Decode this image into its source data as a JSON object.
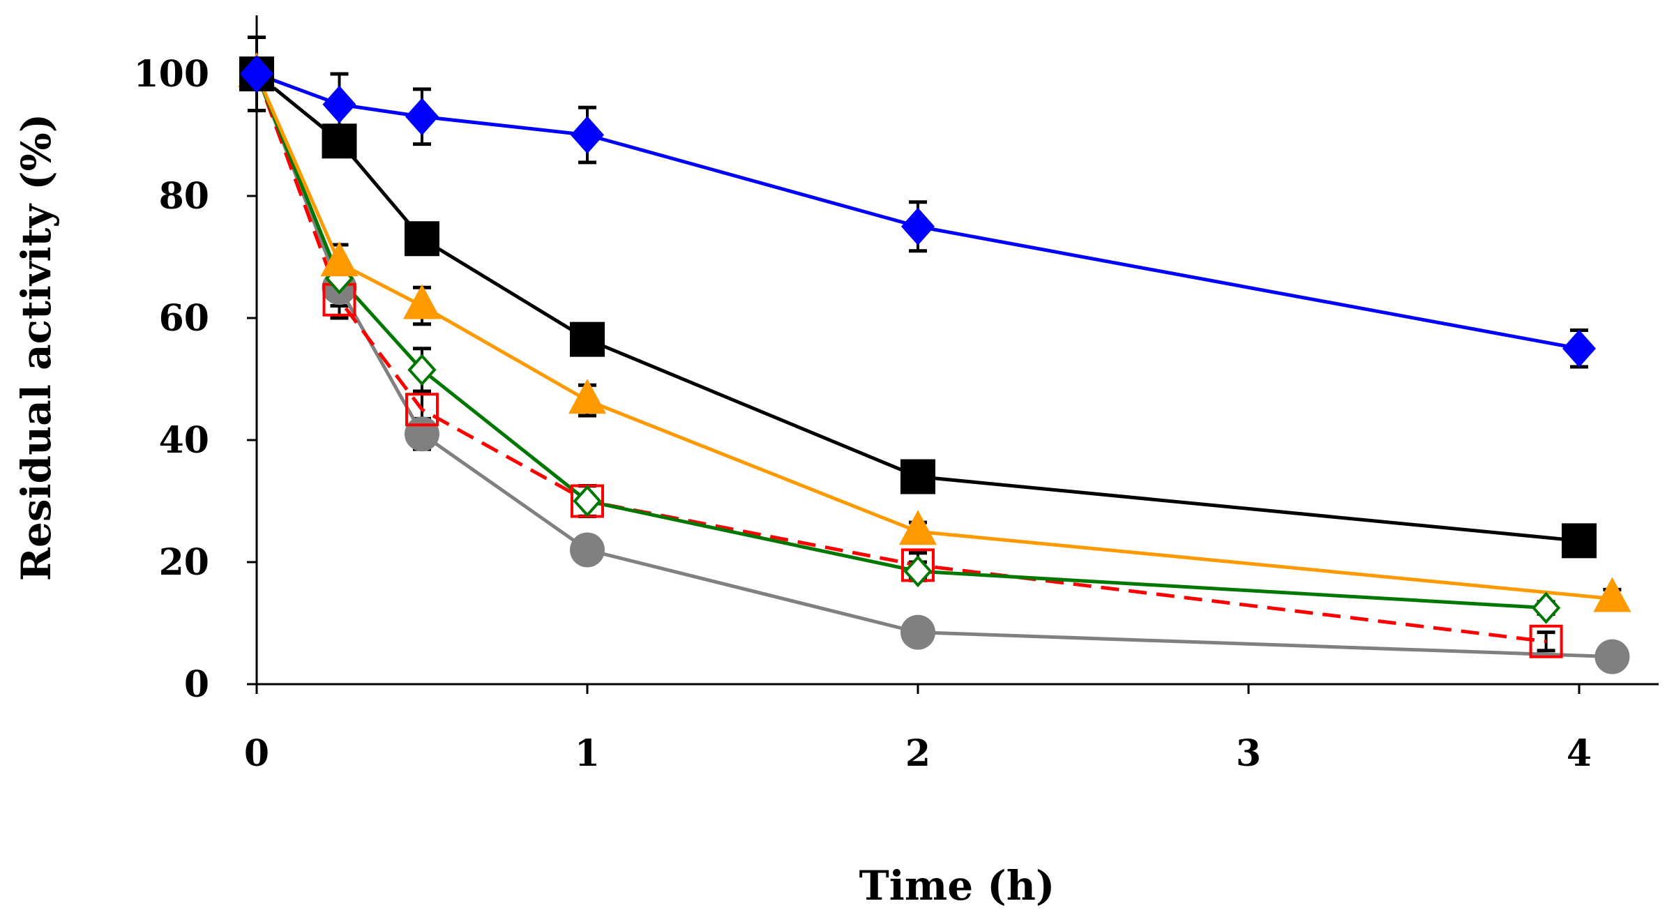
{
  "chart_data": {
    "type": "line",
    "title": "",
    "xlabel": "Time (h)",
    "ylabel": "Residual activity (%)",
    "xlim": [
      0,
      4.2
    ],
    "ylim": [
      0,
      110
    ],
    "x_ticks": [
      "0",
      "1",
      "2",
      "3",
      "4"
    ],
    "x_tick_values": [
      0,
      1,
      2,
      3,
      4
    ],
    "y_ticks": [
      "0",
      "20",
      "40",
      "60",
      "80",
      "100"
    ],
    "y_tick_values": [
      0,
      20,
      40,
      60,
      80,
      100
    ],
    "grid": false,
    "legend": "none",
    "series": [
      {
        "name": "blue-diamond",
        "color": "#0000ff",
        "marker": "diamond-filled",
        "dashed": false,
        "x": [
          0,
          0.25,
          0.5,
          1,
          2,
          4
        ],
        "values": [
          100,
          95,
          93,
          90,
          75,
          55
        ],
        "errors": [
          6,
          5,
          4.5,
          4.5,
          4,
          3
        ]
      },
      {
        "name": "black-square",
        "color": "#000000",
        "marker": "square-filled",
        "dashed": false,
        "x": [
          0,
          0.25,
          0.5,
          1,
          2,
          4
        ],
        "values": [
          100,
          89,
          73,
          56.5,
          34,
          23.5
        ],
        "errors": [
          6,
          2,
          2,
          2,
          1.5,
          1.5
        ]
      },
      {
        "name": "orange-triangle",
        "color": "#ff9900",
        "marker": "triangle-filled",
        "dashed": false,
        "x": [
          0,
          0.25,
          0.5,
          1,
          2,
          4.1
        ],
        "values": [
          100,
          69,
          62,
          46.5,
          25,
          14
        ],
        "errors": [
          6,
          3,
          3,
          2.5,
          1.5,
          1.5
        ]
      },
      {
        "name": "red-open-square",
        "color": "#ff0000",
        "marker": "square-open",
        "dashed": true,
        "x": [
          0,
          0.25,
          0.5,
          1,
          2,
          3.9
        ],
        "values": [
          100,
          63,
          45,
          30,
          19.5,
          7
        ],
        "errors": [
          6,
          3,
          3,
          2.5,
          2,
          1.5
        ]
      },
      {
        "name": "green-open-diamond",
        "color": "#007700",
        "marker": "diamond-open",
        "dashed": false,
        "x": [
          0,
          0.25,
          0.5,
          1,
          2,
          3.9
        ],
        "values": [
          100,
          66.5,
          51.5,
          30,
          18.5,
          12.5
        ],
        "errors": [
          6,
          3,
          3.5,
          2.5,
          1.5,
          1
        ]
      },
      {
        "name": "gray-circle",
        "color": "#808080",
        "marker": "circle-filled",
        "dashed": false,
        "x": [
          0,
          0.25,
          0.5,
          1,
          2,
          4.1
        ],
        "values": [
          100,
          65,
          41,
          22,
          8.5,
          4.5
        ],
        "errors": [
          6,
          3,
          2.5,
          1.5,
          1,
          1
        ]
      }
    ]
  }
}
